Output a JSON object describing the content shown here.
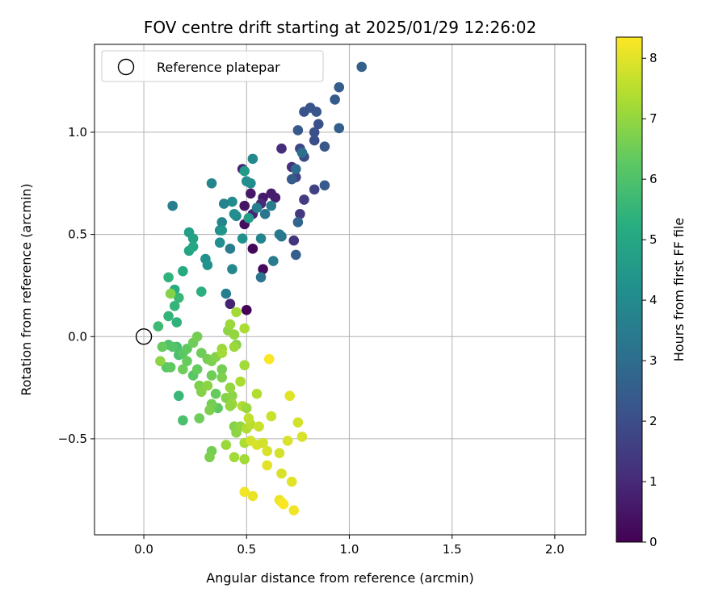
{
  "chart_data": {
    "type": "scatter",
    "title": "FOV centre drift starting at 2025/01/29 12:26:02",
    "xlabel": "Angular distance from reference (arcmin)",
    "ylabel": "Rotation from reference (arcmin)",
    "xlim": [
      -0.24,
      2.15
    ],
    "ylim": [
      -0.97,
      1.43
    ],
    "xticks": [
      0.0,
      0.5,
      1.0,
      1.5,
      2.0
    ],
    "xtick_labels": [
      "0.0",
      "0.5",
      "1.0",
      "1.5",
      "2.0"
    ],
    "yticks": [
      -0.5,
      0.0,
      0.5,
      1.0
    ],
    "ytick_labels": [
      "−0.5",
      "0.0",
      "0.5",
      "1.0"
    ],
    "grid": true,
    "legend": {
      "position": "top-left",
      "entries": [
        "Reference platepar"
      ]
    },
    "reference_point": {
      "x": 0.0,
      "y": 0.0
    },
    "colorbar": {
      "label": "Hours from first FF file",
      "range": [
        0,
        8.35
      ],
      "ticks": [
        0,
        1,
        2,
        3,
        4,
        5,
        6,
        7,
        8
      ],
      "tick_labels": [
        "0",
        "1",
        "2",
        "3",
        "4",
        "5",
        "6",
        "7",
        "8"
      ],
      "colormap": "viridis"
    },
    "points": [
      {
        "x": 0.5,
        "y": 0.13,
        "h": 0.05
      },
      {
        "x": 0.53,
        "y": 0.43,
        "h": 0.15
      },
      {
        "x": 0.58,
        "y": 0.33,
        "h": 0.25
      },
      {
        "x": 0.49,
        "y": 0.55,
        "h": 0.35
      },
      {
        "x": 0.49,
        "y": 0.64,
        "h": 0.45
      },
      {
        "x": 0.52,
        "y": 0.7,
        "h": 0.55
      },
      {
        "x": 0.58,
        "y": 0.68,
        "h": 0.6
      },
      {
        "x": 0.62,
        "y": 0.7,
        "h": 0.65
      },
      {
        "x": 0.64,
        "y": 0.68,
        "h": 0.7
      },
      {
        "x": 0.48,
        "y": 0.82,
        "h": 0.8
      },
      {
        "x": 0.42,
        "y": 0.16,
        "h": 0.85
      },
      {
        "x": 0.53,
        "y": 0.6,
        "h": 0.9
      },
      {
        "x": 0.57,
        "y": 0.65,
        "h": 1.0
      },
      {
        "x": 0.67,
        "y": 0.92,
        "h": 1.1
      },
      {
        "x": 0.72,
        "y": 0.83,
        "h": 1.2
      },
      {
        "x": 0.73,
        "y": 0.47,
        "h": 1.3
      },
      {
        "x": 0.76,
        "y": 0.6,
        "h": 1.4
      },
      {
        "x": 0.78,
        "y": 0.67,
        "h": 1.5
      },
      {
        "x": 0.83,
        "y": 0.72,
        "h": 1.6
      },
      {
        "x": 0.74,
        "y": 0.78,
        "h": 1.7
      },
      {
        "x": 0.76,
        "y": 0.92,
        "h": 1.8
      },
      {
        "x": 0.78,
        "y": 0.88,
        "h": 1.9
      },
      {
        "x": 0.83,
        "y": 0.96,
        "h": 2.0
      },
      {
        "x": 0.83,
        "y": 1.0,
        "h": 2.05
      },
      {
        "x": 0.85,
        "y": 1.04,
        "h": 2.1
      },
      {
        "x": 0.78,
        "y": 1.1,
        "h": 2.15
      },
      {
        "x": 0.81,
        "y": 1.12,
        "h": 2.2
      },
      {
        "x": 0.84,
        "y": 1.1,
        "h": 2.25
      },
      {
        "x": 0.88,
        "y": 0.93,
        "h": 2.3
      },
      {
        "x": 0.88,
        "y": 0.74,
        "h": 2.4
      },
      {
        "x": 0.93,
        "y": 1.16,
        "h": 2.45
      },
      {
        "x": 0.95,
        "y": 1.22,
        "h": 2.5
      },
      {
        "x": 0.95,
        "y": 1.02,
        "h": 2.55
      },
      {
        "x": 1.06,
        "y": 1.32,
        "h": 2.6
      },
      {
        "x": 0.75,
        "y": 1.01,
        "h": 2.35
      },
      {
        "x": 0.72,
        "y": 0.77,
        "h": 2.45
      },
      {
        "x": 0.74,
        "y": 0.4,
        "h": 2.5
      },
      {
        "x": 0.75,
        "y": 0.56,
        "h": 2.7
      },
      {
        "x": 0.74,
        "y": 0.82,
        "h": 3.0
      },
      {
        "x": 0.77,
        "y": 0.9,
        "h": 3.1
      },
      {
        "x": 0.67,
        "y": 0.49,
        "h": 3.3
      },
      {
        "x": 0.66,
        "y": 0.5,
        "h": 3.4
      },
      {
        "x": 0.63,
        "y": 0.37,
        "h": 3.5
      },
      {
        "x": 0.57,
        "y": 0.29,
        "h": 3.2
      },
      {
        "x": 0.59,
        "y": 0.6,
        "h": 3.3
      },
      {
        "x": 0.62,
        "y": 0.64,
        "h": 3.5
      },
      {
        "x": 0.55,
        "y": 0.63,
        "h": 3.6
      },
      {
        "x": 0.57,
        "y": 0.48,
        "h": 3.8
      },
      {
        "x": 0.53,
        "y": 0.87,
        "h": 3.9
      },
      {
        "x": 0.52,
        "y": 0.75,
        "h": 4.0
      },
      {
        "x": 0.5,
        "y": 0.76,
        "h": 4.1
      },
      {
        "x": 0.48,
        "y": 0.48,
        "h": 4.2
      },
      {
        "x": 0.45,
        "y": 0.59,
        "h": 3.9
      },
      {
        "x": 0.43,
        "y": 0.66,
        "h": 4.0
      },
      {
        "x": 0.44,
        "y": 0.6,
        "h": 4.1
      },
      {
        "x": 0.39,
        "y": 0.65,
        "h": 3.7
      },
      {
        "x": 0.4,
        "y": 0.21,
        "h": 3.6
      },
      {
        "x": 0.42,
        "y": 0.43,
        "h": 3.5
      },
      {
        "x": 0.43,
        "y": 0.33,
        "h": 3.9
      },
      {
        "x": 0.38,
        "y": 0.56,
        "h": 3.8
      },
      {
        "x": 0.37,
        "y": 0.52,
        "h": 4.0
      },
      {
        "x": 0.37,
        "y": 0.46,
        "h": 4.1
      },
      {
        "x": 0.33,
        "y": 0.75,
        "h": 3.8
      },
      {
        "x": 0.3,
        "y": 0.38,
        "h": 4.2
      },
      {
        "x": 0.31,
        "y": 0.35,
        "h": 4.3
      },
      {
        "x": 0.38,
        "y": 0.52,
        "h": 4.4
      },
      {
        "x": 0.14,
        "y": 0.64,
        "h": 3.6
      },
      {
        "x": 0.49,
        "y": 0.81,
        "h": 4.5
      },
      {
        "x": 0.51,
        "y": 0.58,
        "h": 4.6
      },
      {
        "x": 0.22,
        "y": 0.51,
        "h": 4.7
      },
      {
        "x": 0.24,
        "y": 0.48,
        "h": 4.8
      },
      {
        "x": 0.22,
        "y": 0.42,
        "h": 4.9
      },
      {
        "x": 0.24,
        "y": 0.44,
        "h": 5.0
      },
      {
        "x": 0.19,
        "y": 0.32,
        "h": 5.1
      },
      {
        "x": 0.15,
        "y": 0.23,
        "h": 5.2
      },
      {
        "x": 0.28,
        "y": 0.22,
        "h": 5.3
      },
      {
        "x": 0.12,
        "y": 0.29,
        "h": 5.4
      },
      {
        "x": 0.15,
        "y": 0.15,
        "h": 5.5
      },
      {
        "x": 0.17,
        "y": 0.19,
        "h": 5.6
      },
      {
        "x": 0.12,
        "y": 0.1,
        "h": 5.5
      },
      {
        "x": 0.16,
        "y": 0.07,
        "h": 5.4
      },
      {
        "x": 0.07,
        "y": 0.05,
        "h": 5.7
      },
      {
        "x": 0.16,
        "y": -0.05,
        "h": 5.8
      },
      {
        "x": 0.17,
        "y": -0.09,
        "h": 5.9
      },
      {
        "x": 0.12,
        "y": -0.04,
        "h": 6.0
      },
      {
        "x": 0.14,
        "y": -0.05,
        "h": 6.1
      },
      {
        "x": 0.11,
        "y": -0.15,
        "h": 6.2
      },
      {
        "x": 0.13,
        "y": -0.15,
        "h": 6.3
      },
      {
        "x": 0.17,
        "y": -0.29,
        "h": 5.6
      },
      {
        "x": 0.19,
        "y": -0.41,
        "h": 5.9
      },
      {
        "x": 0.19,
        "y": -0.08,
        "h": 6.2
      },
      {
        "x": 0.21,
        "y": -0.06,
        "h": 6.3
      },
      {
        "x": 0.21,
        "y": -0.12,
        "h": 6.4
      },
      {
        "x": 0.19,
        "y": -0.16,
        "h": 6.5
      },
      {
        "x": 0.24,
        "y": -0.19,
        "h": 6.2
      },
      {
        "x": 0.26,
        "y": -0.16,
        "h": 6.4
      },
      {
        "x": 0.24,
        "y": -0.03,
        "h": 6.5
      },
      {
        "x": 0.26,
        "y": 0.0,
        "h": 6.6
      },
      {
        "x": 0.28,
        "y": -0.08,
        "h": 6.5
      },
      {
        "x": 0.31,
        "y": -0.11,
        "h": 6.6
      },
      {
        "x": 0.33,
        "y": -0.12,
        "h": 6.7
      },
      {
        "x": 0.35,
        "y": -0.1,
        "h": 6.8
      },
      {
        "x": 0.27,
        "y": -0.24,
        "h": 6.7
      },
      {
        "x": 0.28,
        "y": -0.27,
        "h": 6.8
      },
      {
        "x": 0.31,
        "y": -0.24,
        "h": 6.9
      },
      {
        "x": 0.33,
        "y": -0.19,
        "h": 6.5
      },
      {
        "x": 0.35,
        "y": -0.28,
        "h": 6.4
      },
      {
        "x": 0.36,
        "y": -0.35,
        "h": 6.3
      },
      {
        "x": 0.33,
        "y": -0.33,
        "h": 6.6
      },
      {
        "x": 0.32,
        "y": -0.36,
        "h": 6.7
      },
      {
        "x": 0.27,
        "y": -0.4,
        "h": 6.5
      },
      {
        "x": 0.33,
        "y": -0.56,
        "h": 6.6
      },
      {
        "x": 0.32,
        "y": -0.59,
        "h": 6.7
      },
      {
        "x": 0.09,
        "y": -0.05,
        "h": 6.4
      },
      {
        "x": 0.08,
        "y": -0.12,
        "h": 6.9
      },
      {
        "x": 0.13,
        "y": 0.21,
        "h": 6.8
      },
      {
        "x": 0.38,
        "y": -0.16,
        "h": 6.6
      },
      {
        "x": 0.38,
        "y": -0.2,
        "h": 6.7
      },
      {
        "x": 0.4,
        "y": -0.3,
        "h": 6.8
      },
      {
        "x": 0.43,
        "y": -0.29,
        "h": 6.9
      },
      {
        "x": 0.42,
        "y": -0.25,
        "h": 7.0
      },
      {
        "x": 0.43,
        "y": -0.33,
        "h": 7.1
      },
      {
        "x": 0.42,
        "y": -0.34,
        "h": 7.0
      },
      {
        "x": 0.38,
        "y": -0.06,
        "h": 7.1
      },
      {
        "x": 0.38,
        "y": -0.08,
        "h": 7.2
      },
      {
        "x": 0.41,
        "y": 0.03,
        "h": 6.9
      },
      {
        "x": 0.44,
        "y": 0.01,
        "h": 7.0
      },
      {
        "x": 0.42,
        "y": 0.06,
        "h": 7.1
      },
      {
        "x": 0.45,
        "y": 0.12,
        "h": 7.2
      },
      {
        "x": 0.45,
        "y": -0.04,
        "h": 6.8
      },
      {
        "x": 0.44,
        "y": -0.05,
        "h": 7.1
      },
      {
        "x": 0.49,
        "y": 0.04,
        "h": 7.3
      },
      {
        "x": 0.49,
        "y": -0.14,
        "h": 7.2
      },
      {
        "x": 0.47,
        "y": -0.22,
        "h": 7.3
      },
      {
        "x": 0.48,
        "y": -0.34,
        "h": 7.4
      },
      {
        "x": 0.5,
        "y": -0.35,
        "h": 7.1
      },
      {
        "x": 0.44,
        "y": -0.44,
        "h": 6.8
      },
      {
        "x": 0.45,
        "y": -0.47,
        "h": 6.9
      },
      {
        "x": 0.47,
        "y": -0.44,
        "h": 7.0
      },
      {
        "x": 0.4,
        "y": -0.53,
        "h": 7.1
      },
      {
        "x": 0.44,
        "y": -0.59,
        "h": 7.2
      },
      {
        "x": 0.5,
        "y": -0.45,
        "h": 7.4
      },
      {
        "x": 0.52,
        "y": -0.43,
        "h": 7.5
      },
      {
        "x": 0.49,
        "y": -0.52,
        "h": 7.3
      },
      {
        "x": 0.49,
        "y": -0.6,
        "h": 7.2
      },
      {
        "x": 0.51,
        "y": -0.4,
        "h": 7.6
      },
      {
        "x": 0.55,
        "y": -0.28,
        "h": 7.4
      },
      {
        "x": 0.56,
        "y": -0.44,
        "h": 7.7
      },
      {
        "x": 0.52,
        "y": -0.51,
        "h": 7.8
      },
      {
        "x": 0.55,
        "y": -0.53,
        "h": 7.9
      },
      {
        "x": 0.58,
        "y": -0.52,
        "h": 7.8
      },
      {
        "x": 0.6,
        "y": -0.56,
        "h": 7.9
      },
      {
        "x": 0.62,
        "y": -0.39,
        "h": 7.7
      },
      {
        "x": 0.66,
        "y": -0.57,
        "h": 7.8
      },
      {
        "x": 0.6,
        "y": -0.63,
        "h": 8.0
      },
      {
        "x": 0.53,
        "y": -0.78,
        "h": 8.1
      },
      {
        "x": 0.49,
        "y": -0.76,
        "h": 8.2
      },
      {
        "x": 0.67,
        "y": -0.67,
        "h": 7.9
      },
      {
        "x": 0.72,
        "y": -0.71,
        "h": 8.0
      },
      {
        "x": 0.66,
        "y": -0.8,
        "h": 8.1
      },
      {
        "x": 0.67,
        "y": -0.81,
        "h": 8.2
      },
      {
        "x": 0.68,
        "y": -0.82,
        "h": 8.3
      },
      {
        "x": 0.73,
        "y": -0.85,
        "h": 8.2
      },
      {
        "x": 0.7,
        "y": -0.51,
        "h": 7.9
      },
      {
        "x": 0.71,
        "y": -0.29,
        "h": 8.0
      },
      {
        "x": 0.75,
        "y": -0.42,
        "h": 7.8
      },
      {
        "x": 0.77,
        "y": -0.49,
        "h": 7.9
      },
      {
        "x": 0.61,
        "y": -0.11,
        "h": 8.3
      }
    ]
  }
}
